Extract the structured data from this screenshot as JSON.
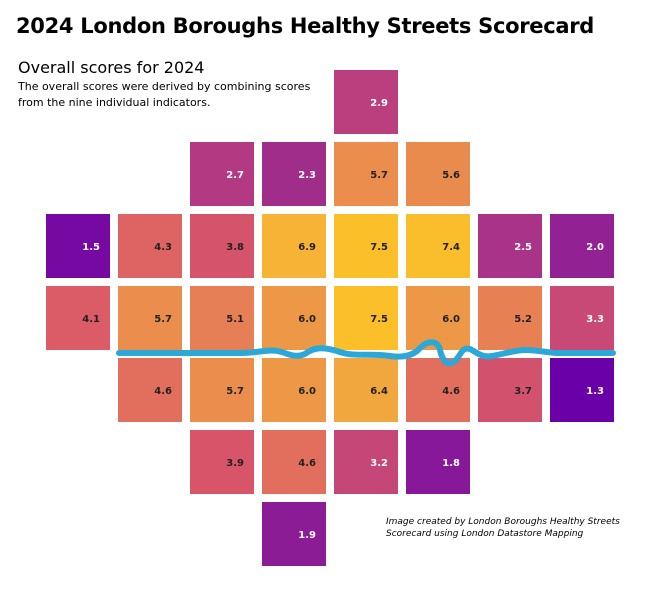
{
  "title": "2024 London Boroughs Healthy Streets Scorecard",
  "subtitle": "Overall scores for 2024",
  "description": "The overall scores were derived by combining scores from the nine individual indicators.",
  "credit": "Image created by London Boroughs Healthy Streets Scorecard using London Datastore Mapping",
  "colors": {
    "river": "#2BA8D8",
    "text_dark": "#222222",
    "text_light": "#ffffff"
  },
  "chart_data": {
    "type": "heatmap",
    "title": "2024 London Boroughs Healthy Streets Scorecard",
    "subtitle": "Overall scores for 2024",
    "grid_rows": 7,
    "grid_cols": 8,
    "tiles": [
      {
        "row": 0,
        "col": 4,
        "value": 2.9
      },
      {
        "row": 1,
        "col": 2,
        "value": 2.7
      },
      {
        "row": 1,
        "col": 3,
        "value": 2.3
      },
      {
        "row": 1,
        "col": 4,
        "value": 5.7
      },
      {
        "row": 1,
        "col": 5,
        "value": 5.6
      },
      {
        "row": 2,
        "col": 0,
        "value": 1.5
      },
      {
        "row": 2,
        "col": 1,
        "value": 4.3
      },
      {
        "row": 2,
        "col": 2,
        "value": 3.8
      },
      {
        "row": 2,
        "col": 3,
        "value": 6.9
      },
      {
        "row": 2,
        "col": 4,
        "value": 7.5
      },
      {
        "row": 2,
        "col": 5,
        "value": 7.4
      },
      {
        "row": 2,
        "col": 6,
        "value": 2.5
      },
      {
        "row": 2,
        "col": 7,
        "value": 2.0
      },
      {
        "row": 3,
        "col": 0,
        "value": 4.1
      },
      {
        "row": 3,
        "col": 1,
        "value": 5.7
      },
      {
        "row": 3,
        "col": 2,
        "value": 5.1
      },
      {
        "row": 3,
        "col": 3,
        "value": 6.0
      },
      {
        "row": 3,
        "col": 4,
        "value": 7.5
      },
      {
        "row": 3,
        "col": 5,
        "value": 6.0
      },
      {
        "row": 3,
        "col": 6,
        "value": 5.2
      },
      {
        "row": 3,
        "col": 7,
        "value": 3.3
      },
      {
        "row": 4,
        "col": 1,
        "value": 4.6
      },
      {
        "row": 4,
        "col": 2,
        "value": 5.7
      },
      {
        "row": 4,
        "col": 3,
        "value": 6.0
      },
      {
        "row": 4,
        "col": 4,
        "value": 6.4
      },
      {
        "row": 4,
        "col": 5,
        "value": 4.6
      },
      {
        "row": 4,
        "col": 6,
        "value": 3.7
      },
      {
        "row": 4,
        "col": 7,
        "value": 1.3
      },
      {
        "row": 5,
        "col": 2,
        "value": 3.9
      },
      {
        "row": 5,
        "col": 3,
        "value": 4.6
      },
      {
        "row": 5,
        "col": 4,
        "value": 3.2
      },
      {
        "row": 5,
        "col": 5,
        "value": 1.8
      },
      {
        "row": 6,
        "col": 3,
        "value": 1.9
      }
    ],
    "color_scale": {
      "min": 1.3,
      "max": 7.5,
      "stops": [
        "#6A00A8",
        "#9C2A8E",
        "#C2447A",
        "#D95668",
        "#E5795A",
        "#EB8E4C",
        "#F3AE3A",
        "#FBBF2A"
      ]
    },
    "xlabel": "",
    "ylabel": "",
    "legend": "none",
    "grid": false
  }
}
